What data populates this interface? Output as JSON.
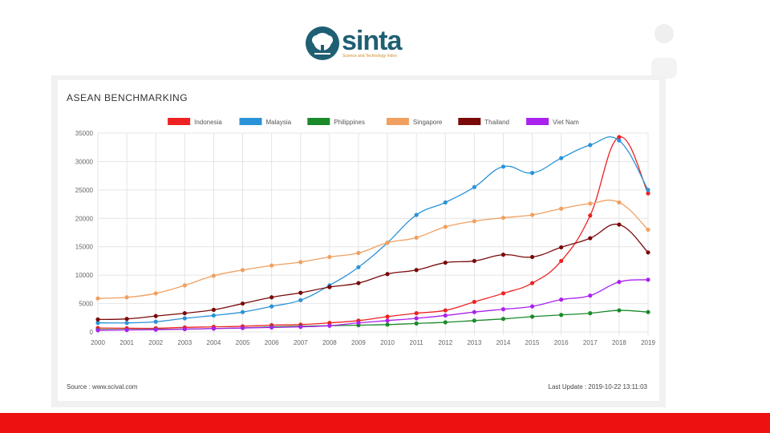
{
  "logo": {
    "name": "sinta",
    "tagline": "Science and Technology Index"
  },
  "panel": {
    "title": "ASEAN BENCHMARKING",
    "source": "Source : www.scival.com",
    "last_update": "Last Update : 2019-10-22 13:11:03"
  },
  "colors": {
    "bottom_bar": "#ee1111",
    "Indonesia": "#ee2222",
    "Malaysia": "#2a93d8",
    "Philippines": "#1a8a2a",
    "Singapore": "#f0a060",
    "Thailand": "#7a0a0a",
    "Viet Nam": "#aa22ee"
  },
  "chart_data": {
    "type": "line",
    "title": "ASEAN BENCHMARKING",
    "x": [
      "2000",
      "2001",
      "2002",
      "2003",
      "2004",
      "2005",
      "2006",
      "2007",
      "2008",
      "2009",
      "2010",
      "2011",
      "2012",
      "2013",
      "2014",
      "2015",
      "2016",
      "2017",
      "2018",
      "2019"
    ],
    "ylim": [
      0,
      35000
    ],
    "yticks": [
      "0",
      "5000",
      "10000",
      "15000",
      "20000",
      "25000",
      "30000",
      "35000"
    ],
    "legend_position": "top",
    "grid": true,
    "series": [
      {
        "name": "Indonesia",
        "values": [
          700,
          650,
          650,
          800,
          900,
          1000,
          1200,
          1300,
          1600,
          2000,
          2700,
          3300,
          3800,
          5300,
          6800,
          8600,
          12500,
          20500,
          34300,
          24400
        ]
      },
      {
        "name": "Malaysia",
        "values": [
          1600,
          1600,
          1800,
          2400,
          2900,
          3500,
          4500,
          5600,
          8200,
          11400,
          15700,
          20600,
          22800,
          25500,
          29100,
          28000,
          30600,
          32900,
          33700,
          25000
        ]
      },
      {
        "name": "Philippines",
        "values": [
          400,
          400,
          450,
          500,
          600,
          700,
          900,
          1000,
          1100,
          1200,
          1300,
          1500,
          1700,
          2000,
          2300,
          2700,
          3000,
          3300,
          3800,
          3500
        ]
      },
      {
        "name": "Singapore",
        "values": [
          5900,
          6100,
          6800,
          8200,
          9900,
          10900,
          11700,
          12300,
          13200,
          13900,
          15700,
          16600,
          18500,
          19500,
          20100,
          20600,
          21700,
          22600,
          22800,
          18000
        ]
      },
      {
        "name": "Thailand",
        "values": [
          2200,
          2300,
          2800,
          3300,
          3900,
          5000,
          6100,
          6900,
          7900,
          8600,
          10200,
          10900,
          12200,
          12500,
          13600,
          13200,
          14900,
          16500,
          18900,
          14000
        ]
      },
      {
        "name": "Viet Nam",
        "values": [
          300,
          350,
          400,
          500,
          600,
          700,
          800,
          900,
          1100,
          1600,
          2000,
          2400,
          2900,
          3500,
          4000,
          4500,
          5700,
          6400,
          8800,
          9200
        ]
      }
    ]
  }
}
